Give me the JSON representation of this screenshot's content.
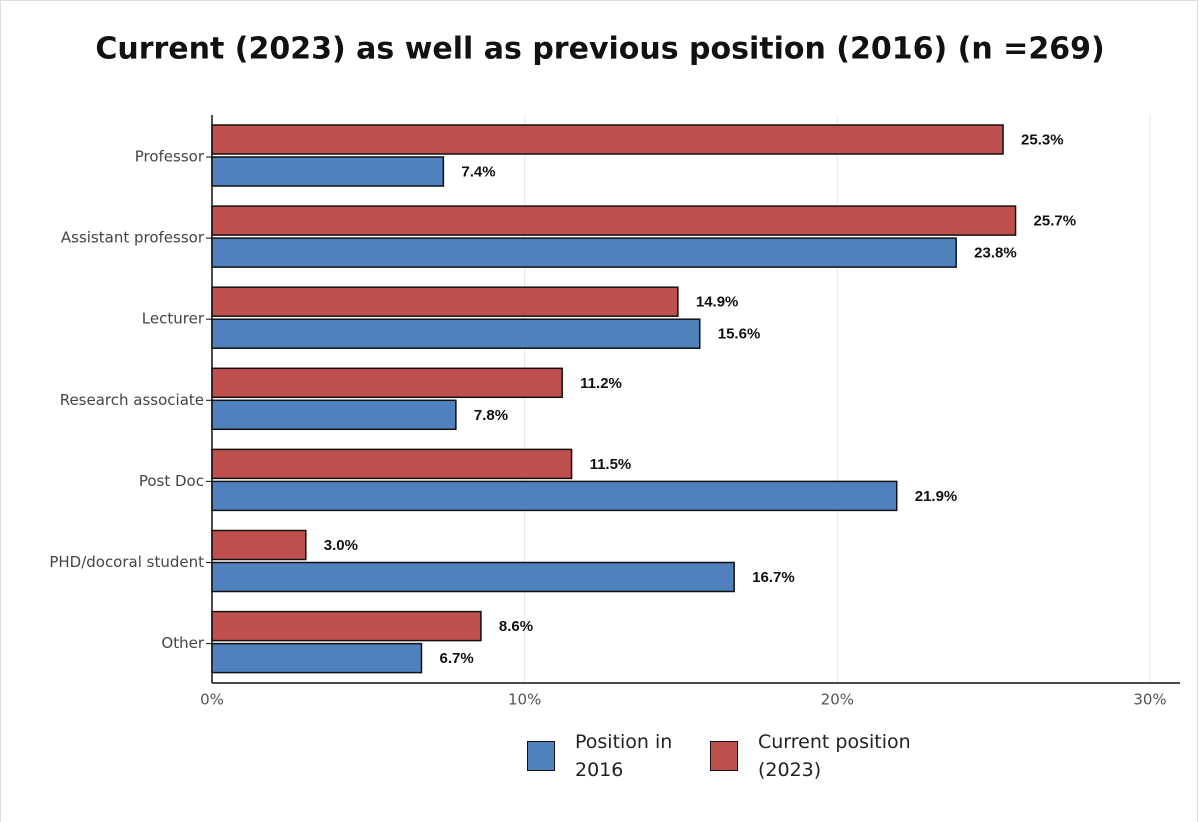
{
  "chart_data": {
    "type": "bar",
    "orientation": "horizontal",
    "title": "Current (2023) as well as previous position (2016) (n =269)",
    "categories": [
      "Professor",
      "Assistant professor",
      "Lecturer",
      "Research associate",
      "Post Doc",
      "PHD/docoral student",
      "Other"
    ],
    "series": [
      {
        "name": "Position in 2016",
        "color": "#4f81bd",
        "values": [
          7.4,
          23.8,
          15.6,
          7.8,
          21.9,
          16.7,
          6.7
        ],
        "value_labels": [
          "7.4%",
          "23.8%",
          "15.6%",
          "7.8%",
          "21.9%",
          "16.7%",
          "6.7%"
        ]
      },
      {
        "name": "Current position (2023)",
        "color": "#c0504d",
        "values": [
          25.3,
          25.7,
          14.9,
          11.2,
          11.5,
          3.0,
          8.6
        ],
        "value_labels": [
          "25.3%",
          "25.7%",
          "14.9%",
          "11.2%",
          "11.5%",
          "3.0%",
          "8.6%"
        ]
      }
    ],
    "xlim": [
      0,
      30
    ],
    "xticks": [
      {
        "value": 0,
        "label": "0%"
      },
      {
        "value": 10,
        "label": "10%"
      },
      {
        "value": 20,
        "label": "20%"
      },
      {
        "value": 30,
        "label": "30%"
      }
    ],
    "grid": true
  }
}
